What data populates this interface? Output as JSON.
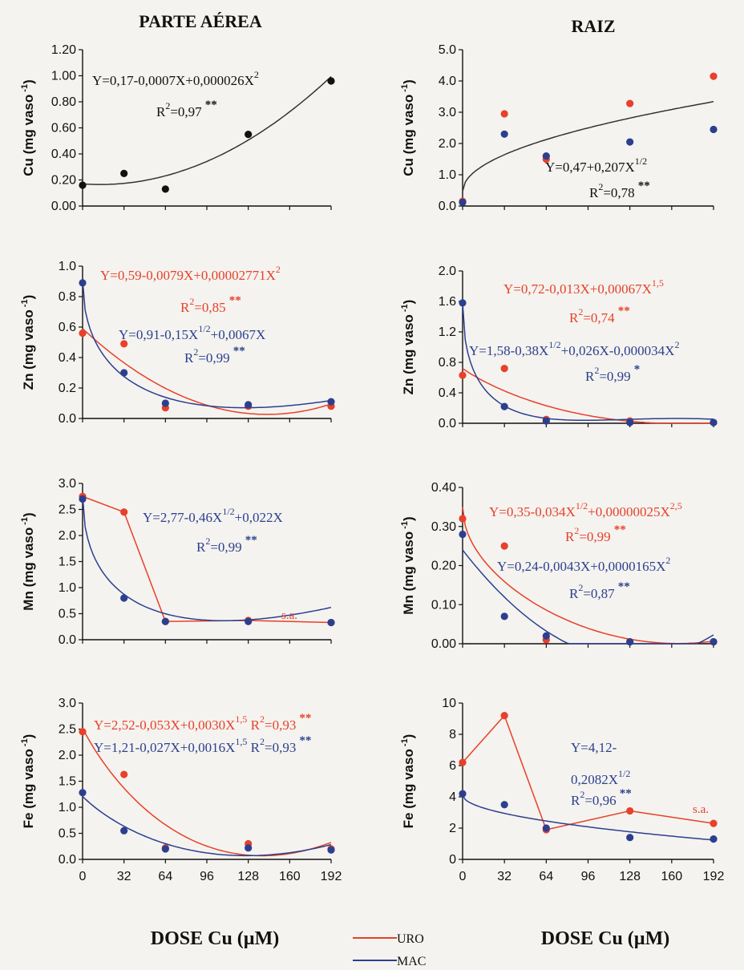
{
  "colors": {
    "URO": "#e8402a",
    "MAC": "#2c3f8f",
    "black": "#111111"
  },
  "columns": {
    "left_title": "PARTE AÉREA",
    "right_title": "RAIZ"
  },
  "xaxis": {
    "title": "DOSE Cu (µM)",
    "ticks": [
      "0",
      "32",
      "64",
      "96",
      "128",
      "160",
      "192"
    ]
  },
  "legend": {
    "uro": "URO",
    "mac": "MAC"
  },
  "chart_data": [
    {
      "id": "cu-parte",
      "type": "scatter",
      "ylabel": "Cu (mg vaso -1)",
      "ylim": [
        0,
        1.2
      ],
      "yticks": [
        "0.00",
        "0.20",
        "0.40",
        "0.60",
        "0.80",
        "1.00",
        "1.20"
      ],
      "series": [
        {
          "color": "black",
          "points": [
            [
              0,
              0.16
            ],
            [
              32,
              0.25
            ],
            [
              64,
              0.13
            ],
            [
              128,
              0.55
            ],
            [
              192,
              0.96
            ]
          ],
          "fit": {
            "kind": "poly",
            "a": 0.17,
            "b": -0.0007,
            "c": 2.6e-05
          }
        }
      ],
      "equations": [
        {
          "text": "Y=0,17-0,0007X+0,000026X",
          "sup": "2",
          "color": "black"
        },
        {
          "text": "R",
          "sup": "2",
          "tail": "=0,97",
          "sig": "**",
          "color": "black"
        }
      ]
    },
    {
      "id": "cu-raiz",
      "type": "scatter",
      "ylabel": "Cu (mg vaso -1)",
      "ylim": [
        0,
        5.0
      ],
      "yticks": [
        "0.0",
        "1.0",
        "2.0",
        "3.0",
        "4.0",
        "5.0"
      ],
      "series": [
        {
          "name": "URO",
          "color": "URO",
          "points": [
            [
              0,
              0.15
            ],
            [
              32,
              2.95
            ],
            [
              64,
              1.5
            ],
            [
              128,
              3.28
            ],
            [
              192,
              4.15
            ]
          ]
        },
        {
          "name": "MAC",
          "color": "MAC",
          "points": [
            [
              0,
              0.12
            ],
            [
              32,
              2.3
            ],
            [
              64,
              1.6
            ],
            [
              128,
              2.05
            ],
            [
              192,
              2.45
            ]
          ]
        },
        {
          "color": "black",
          "points": [],
          "fit": {
            "kind": "sqrt",
            "a": 0.47,
            "b": 0.207
          }
        }
      ],
      "equations": [
        {
          "text": "Y=0,47+0,207X",
          "sup": "1/2",
          "color": "black"
        },
        {
          "text": "R",
          "sup": "2",
          "tail": "=0,78",
          "sig": "**",
          "color": "black"
        }
      ]
    },
    {
      "id": "zn-parte",
      "type": "scatter",
      "ylabel": "Zn (mg vaso -1)",
      "ylim": [
        0,
        1.0
      ],
      "yticks": [
        "0.0",
        "0.2",
        "0.4",
        "0.6",
        "0.8",
        "1.0"
      ],
      "series": [
        {
          "name": "URO",
          "color": "URO",
          "points": [
            [
              0,
              0.56
            ],
            [
              32,
              0.49
            ],
            [
              64,
              0.07
            ],
            [
              128,
              0.08
            ],
            [
              192,
              0.08
            ]
          ],
          "fit": {
            "kind": "poly",
            "a": 0.59,
            "b": -0.0079,
            "c": 2.771e-05
          }
        },
        {
          "name": "MAC",
          "color": "MAC",
          "points": [
            [
              0,
              0.89
            ],
            [
              32,
              0.3
            ],
            [
              64,
              0.1
            ],
            [
              128,
              0.09
            ],
            [
              192,
              0.11
            ]
          ],
          "fit": {
            "kind": "sqrtlin",
            "a": 0.91,
            "b": -0.15,
            "c": 0.0067
          }
        }
      ],
      "equations": [
        {
          "text": "Y=0,59-0,0079X+0,00002771X",
          "sup": "2",
          "color": "URO"
        },
        {
          "text": "R",
          "sup": "2",
          "tail": "=0,85",
          "sig": "**",
          "color": "URO"
        },
        {
          "text": "Y=0,91-0,15X",
          "sup": "1/2",
          "tail": "+0,0067X",
          "color": "MAC"
        },
        {
          "text": "R",
          "sup": "2",
          "tail": "=0,99",
          "sig": "**",
          "color": "MAC"
        }
      ]
    },
    {
      "id": "zn-raiz",
      "type": "scatter",
      "ylabel": "Zn (mg vaso -1)",
      "ylim": [
        0,
        2.0
      ],
      "yticks": [
        "0.0",
        "0.4",
        "0.8",
        "1.2",
        "1.6",
        "2.0"
      ],
      "series": [
        {
          "name": "URO",
          "color": "URO",
          "points": [
            [
              0,
              0.63
            ],
            [
              32,
              0.72
            ],
            [
              64,
              0.05
            ],
            [
              128,
              0.03
            ],
            [
              192,
              0.01
            ]
          ],
          "fit": {
            "kind": "pow15",
            "a": 0.72,
            "b": -0.013,
            "c": 0.00067
          }
        },
        {
          "name": "MAC",
          "color": "MAC",
          "points": [
            [
              0,
              1.58
            ],
            [
              32,
              0.22
            ],
            [
              64,
              0.03
            ],
            [
              128,
              0.01
            ],
            [
              192,
              0.01
            ]
          ],
          "fit": {
            "kind": "sqrtquad",
            "a": 1.58,
            "b": -0.38,
            "c": 0.026,
            "d": -3.4e-05
          }
        }
      ],
      "equations": [
        {
          "text": "Y=0,72-0,013X+0,00067X",
          "sup": "1,5",
          "color": "URO"
        },
        {
          "text": "R",
          "sup": "2",
          "tail": "=0,74",
          "sig": "**",
          "color": "URO"
        },
        {
          "text": "Y=1,58-0,38X",
          "sup": "1/2",
          "tail": "+0,026X-0,000034X",
          "sup2": "2",
          "color": "MAC"
        },
        {
          "text": "R",
          "sup": "2",
          "tail": "=0,99",
          "sig": "*",
          "color": "MAC"
        }
      ]
    },
    {
      "id": "mn-parte",
      "type": "scatter",
      "ylabel": "Mn (mg vaso -1)",
      "ylim": [
        0,
        3.0
      ],
      "yticks": [
        "0.0",
        "0.5",
        "1.0",
        "1.5",
        "2.0",
        "2.5",
        "3.0"
      ],
      "series": [
        {
          "name": "URO",
          "color": "URO",
          "points": [
            [
              0,
              2.75
            ],
            [
              32,
              2.45
            ],
            [
              64,
              0.35
            ],
            [
              128,
              0.37
            ],
            [
              192,
              0.33
            ]
          ],
          "connect": true,
          "tail": [
            [
              192,
              0.3
            ]
          ]
        },
        {
          "name": "MAC",
          "color": "MAC",
          "points": [
            [
              0,
              2.7
            ],
            [
              32,
              0.8
            ],
            [
              64,
              0.35
            ],
            [
              128,
              0.35
            ],
            [
              192,
              0.33
            ]
          ],
          "fit": {
            "kind": "sqrtlin",
            "a": 2.77,
            "b": -0.46,
            "c": 0.022
          }
        }
      ],
      "equations": [
        {
          "text": "Y=2,77-0,46X",
          "sup": "1/2",
          "tail": "+0,022X",
          "color": "MAC"
        },
        {
          "text": "R",
          "sup": "2",
          "tail": "=0,99",
          "sig": "**",
          "color": "MAC"
        }
      ],
      "annotation": "s.a."
    },
    {
      "id": "mn-raiz",
      "type": "scatter",
      "ylabel": "Mn (mg vaso -1)",
      "ylim": [
        0,
        0.4
      ],
      "yticks": [
        "0.00",
        "0.10",
        "0.20",
        "0.30",
        "0.40"
      ],
      "series": [
        {
          "name": "URO",
          "color": "URO",
          "points": [
            [
              0,
              0.32
            ],
            [
              32,
              0.25
            ],
            [
              64,
              0.01
            ],
            [
              128,
              0.005
            ],
            [
              192,
              0.005
            ]
          ],
          "fit": {
            "kind": "sqrtpow25",
            "a": 0.35,
            "b": -0.034,
            "c": 2.5e-07
          }
        },
        {
          "name": "MAC",
          "color": "MAC",
          "points": [
            [
              0,
              0.28
            ],
            [
              32,
              0.07
            ],
            [
              64,
              0.02
            ],
            [
              128,
              0.005
            ],
            [
              192,
              0.005
            ]
          ],
          "fit": {
            "kind": "poly",
            "a": 0.24,
            "b": -0.0043,
            "c": 1.65e-05
          }
        }
      ],
      "equations": [
        {
          "text": "Y=0,35-0,034X",
          "sup": "1/2",
          "tail": "+0,00000025X",
          "sup2": "2,5",
          "color": "URO"
        },
        {
          "text": "R",
          "sup": "2",
          "tail": "=0,99",
          "sig": "**",
          "color": "URO"
        },
        {
          "text": "Y=0,24-0,0043X+0,0000165X",
          "sup": "2",
          "color": "MAC"
        },
        {
          "text": "R",
          "sup": "2",
          "tail": "=0,87",
          "sig": "**",
          "color": "MAC"
        }
      ]
    },
    {
      "id": "fe-parte",
      "type": "scatter",
      "ylabel": "Fe (mg vaso -1)",
      "ylim": [
        0,
        3.0
      ],
      "yticks": [
        "0.0",
        "0.5",
        "1.0",
        "1.5",
        "2.0",
        "2.5",
        "3.0"
      ],
      "series": [
        {
          "name": "URO",
          "color": "URO",
          "points": [
            [
              0,
              2.45
            ],
            [
              32,
              1.63
            ],
            [
              64,
              0.22
            ],
            [
              128,
              0.3
            ],
            [
              192,
              0.2
            ]
          ],
          "fit": {
            "kind": "pow15",
            "a": 2.52,
            "b": -0.053,
            "c": 0.003
          }
        },
        {
          "name": "MAC",
          "color": "MAC",
          "points": [
            [
              0,
              1.28
            ],
            [
              32,
              0.55
            ],
            [
              64,
              0.2
            ],
            [
              128,
              0.22
            ],
            [
              192,
              0.18
            ]
          ],
          "fit": {
            "kind": "pow15",
            "a": 1.21,
            "b": -0.027,
            "c": 0.0016
          }
        }
      ],
      "equations": [
        {
          "text": "Y=2,52-0,053X+0,0030X",
          "sup": "1,5",
          "tail": "  R",
          "sup2": "2",
          "tail2": "=0,93",
          "sig": "**",
          "color": "URO"
        },
        {
          "text": "Y=1,21-0,027X+0,0016X",
          "sup": "1,5",
          "tail": "  R",
          "sup2": "2",
          "tail2": "=0,93",
          "sig": "**",
          "color": "MAC"
        }
      ]
    },
    {
      "id": "fe-raiz",
      "type": "scatter",
      "ylabel": "Fe (mg vaso -1)",
      "ylim": [
        0,
        10
      ],
      "yticks": [
        "0",
        "2",
        "4",
        "6",
        "8",
        "10"
      ],
      "series": [
        {
          "name": "URO",
          "color": "URO",
          "points": [
            [
              0,
              6.2
            ],
            [
              32,
              9.2
            ],
            [
              64,
              1.9
            ],
            [
              128,
              3.1
            ],
            [
              192,
              2.3
            ]
          ],
          "connect": true
        },
        {
          "name": "MAC",
          "color": "MAC",
          "points": [
            [
              0,
              4.2
            ],
            [
              32,
              3.5
            ],
            [
              64,
              2.0
            ],
            [
              128,
              1.4
            ],
            [
              192,
              1.3
            ]
          ],
          "fit": {
            "kind": "sqrt",
            "a": 4.12,
            "b": -0.2082
          }
        }
      ],
      "equations": [
        {
          "text": "Y=4,12-",
          "color": "MAC"
        },
        {
          "text": "0,2082X",
          "sup": "1/2",
          "color": "MAC"
        },
        {
          "text": "R",
          "sup": "2",
          "tail": "=0,96",
          "sig": "**",
          "color": "MAC"
        }
      ],
      "annotation": "s.a."
    }
  ]
}
